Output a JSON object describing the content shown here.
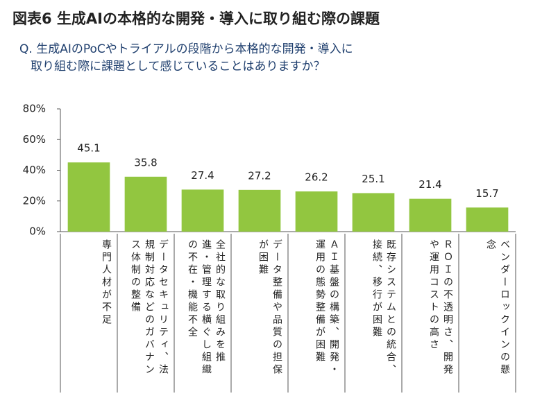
{
  "chart_data": {
    "type": "bar",
    "title": "図表6 生成AIの本格的な開発・導入に取り組む際の課題",
    "subtitle": [
      "Q. 生成AIのPoCやトライアルの段階から本格的な開発・導入に",
      "取り組む際に課題として感じていることはありますか？"
    ],
    "categories": [
      "専門人材が不足",
      "データセキュリティ、法規制対応などのガバナンス体制の整備",
      "全社的な取り組みを推進・管理する横ぐし組織の不在・機能不全",
      "データ整備や品質の担保が困難",
      "ＡＩ基盤の構築、開発・運用の態勢整備が困難",
      "既存システムとの統合、接続、移行が困難",
      "ＲＯＩの不透明さ、開発や運用コストの高さ",
      "ベンダーロックインの懸念"
    ],
    "values": [
      45.1,
      35.8,
      27.4,
      27.2,
      26.2,
      25.1,
      21.4,
      15.7
    ],
    "color": "#92c640",
    "ylim": [
      0,
      80
    ],
    "yticks": [
      {
        "value": 0,
        "label": "0%"
      },
      {
        "value": 20,
        "label": "20%"
      },
      {
        "value": 40,
        "label": "40%"
      },
      {
        "value": 60,
        "label": "60%"
      },
      {
        "value": 80,
        "label": "80%"
      }
    ],
    "grid": false
  }
}
